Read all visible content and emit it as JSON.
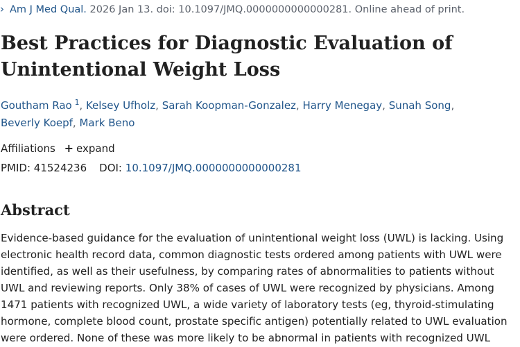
{
  "citation": {
    "chevron_icon": "chevron-right-icon",
    "journal": "Am J Med Qual.",
    "details": " 2026 Jan 13. doi: 10.1097/JMQ.0000000000000281. Online ahead of print."
  },
  "title": "Best Practices for Diagnostic Evaluation of Unintentional Weight Loss",
  "authors": [
    {
      "name": "Goutham Rao",
      "sup": "1"
    },
    {
      "name": "Kelsey Ufholz"
    },
    {
      "name": "Sarah Koopman-Gonzalez"
    },
    {
      "name": "Harry Menegay"
    },
    {
      "name": "Sunah Song"
    },
    {
      "name": "Beverly Koepf"
    },
    {
      "name": "Mark Beno"
    }
  ],
  "affiliations": {
    "label": "Affiliations",
    "expand_label": "expand",
    "expand_icon": "plus-icon"
  },
  "identifiers": {
    "pmid_label": "PMID:",
    "pmid": "41524236",
    "doi_label": "DOI:",
    "doi": "10.1097/JMQ.0000000000000281"
  },
  "abstract": {
    "heading": "Abstract",
    "text": "Evidence-based guidance for the evaluation of unintentional weight loss (UWL) is lacking. Using electronic health record data, common diagnostic tests ordered among patients with UWL were identified, as well as their usefulness, by comparing rates of abnormalities to patients without UWL and reviewing reports. Only 38% of cases of UWL were recognized by physicians. Among 1471 patients with recognized UWL, a wide variety of laboratory tests (eg, thyroid-stimulating hormone, complete blood count, prostate specific antigen) potentially related to UWL evaluation were ordered. None of these was more likely to be abnormal in patients with recognized UWL compared with"
  },
  "colors": {
    "link": "#20558a",
    "text": "#212121",
    "muted": "#5b616b"
  }
}
